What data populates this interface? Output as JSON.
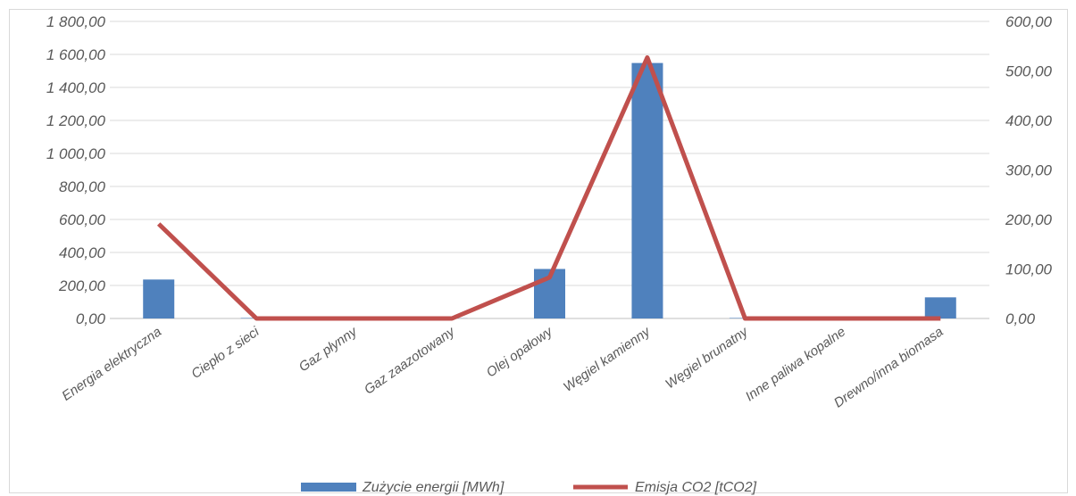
{
  "chart_data": {
    "type": "bar",
    "categories": [
      "Energia elektryczna",
      "Ciepło z sieci",
      "Gaz płynny",
      "Gaz zaazotowany",
      "Olej opałowy",
      "Węgiel kamienny",
      "Węgiel brunatny",
      "Inne paliwa kopalne",
      "Drewno/inna biomasa"
    ],
    "series": [
      {
        "name": "Zużycie energii [MWh]",
        "type": "bar",
        "axis": "left",
        "color": "#4f81bd",
        "values": [
          236,
          3,
          0,
          1,
          300,
          1548,
          3,
          0,
          128
        ]
      },
      {
        "name": "Emisja CO2 [tCO2]",
        "type": "line",
        "axis": "right",
        "color": "#c0504d",
        "values": [
          191,
          0,
          0,
          0,
          83,
          527,
          0,
          0,
          0
        ]
      }
    ],
    "y_left": {
      "min": 0,
      "max": 1800,
      "step": 200,
      "tick_labels": [
        "0,00",
        "200,00",
        "400,00",
        "600,00",
        "800,00",
        "1 000,00",
        "1 200,00",
        "1 400,00",
        "1 600,00",
        "1 800,00"
      ]
    },
    "y_right": {
      "min": 0,
      "max": 600,
      "step": 100,
      "tick_labels": [
        "0,00",
        "100,00",
        "200,00",
        "300,00",
        "400,00",
        "500,00",
        "600,00"
      ]
    },
    "grid": true,
    "legend_position": "bottom"
  }
}
